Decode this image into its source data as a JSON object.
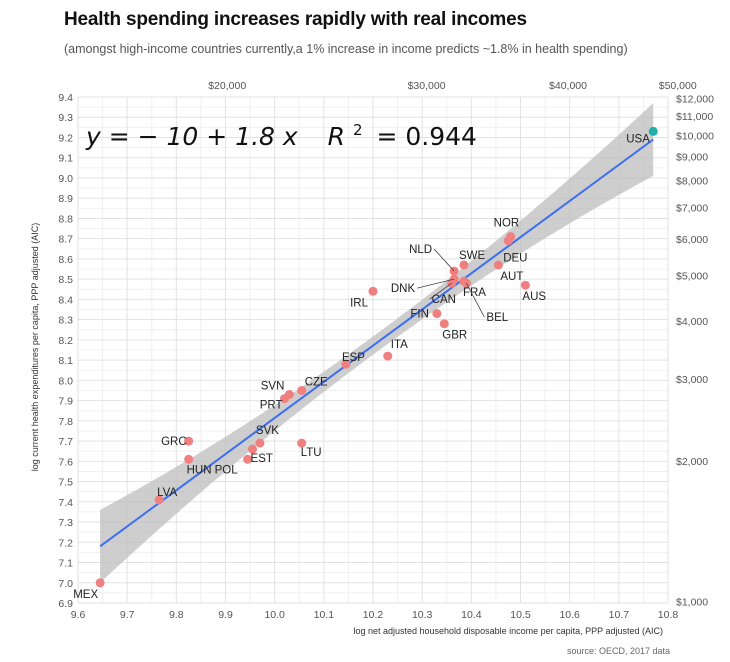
{
  "chart_data": {
    "type": "scatter",
    "title": "Health spending increases rapidly with real incomes",
    "subtitle": "(amongst high-income countries currently,a 1% increase in income predicts ~1.8% in health spending)",
    "xlabel": "log net adjusted household disposable income per capita, PPP adjusted (AIC)",
    "ylabel": "log current health expenditures per capita, PPP adjusted (AIC)",
    "source": "source: OECD, 2017 data",
    "equation": {
      "lhs": "y = − 10 + 1.8 x",
      "r2_prefix": "R",
      "r2_power": "2",
      "r2_rhs": "= 0.944"
    },
    "xlim": [
      9.6,
      10.8
    ],
    "ylim": [
      6.9,
      9.4
    ],
    "x_ticks": [
      "9.6",
      "9.7",
      "9.8",
      "9.9",
      "10.0",
      "10.1",
      "10.2",
      "10.3",
      "10.4",
      "10.5",
      "10.6",
      "10.7",
      "10.8"
    ],
    "y_ticks": [
      "6.9",
      "7.0",
      "7.1",
      "7.2",
      "7.3",
      "7.4",
      "7.5",
      "7.6",
      "7.7",
      "7.8",
      "7.9",
      "8.0",
      "8.1",
      "8.2",
      "8.3",
      "8.4",
      "8.5",
      "8.6",
      "8.7",
      "8.8",
      "8.9",
      "9.0",
      "9.1",
      "9.2",
      "9.3",
      "9.4"
    ],
    "top_axis": [
      {
        "label": "$20,000",
        "value": 20000
      },
      {
        "label": "$30,000",
        "value": 30000
      },
      {
        "label": "$40,000",
        "value": 40000
      },
      {
        "label": "$50,000",
        "value": 50000
      }
    ],
    "right_axis": [
      {
        "label": "$1,000",
        "value": 1000
      },
      {
        "label": "$2,000",
        "value": 2000
      },
      {
        "label": "$3,000",
        "value": 3000
      },
      {
        "label": "$4,000",
        "value": 4000
      },
      {
        "label": "$5,000",
        "value": 5000
      },
      {
        "label": "$6,000",
        "value": 6000
      },
      {
        "label": "$7,000",
        "value": 7000
      },
      {
        "label": "$8,000",
        "value": 8000
      },
      {
        "label": "$9,000",
        "value": 9000
      },
      {
        "label": "$10,000",
        "value": 10000
      },
      {
        "label": "$11,000",
        "value": 11000
      },
      {
        "label": "$12,000",
        "value": 12000
      }
    ],
    "fit_line": {
      "x": [
        9.645,
        10.77
      ],
      "y": [
        7.18,
        9.19
      ],
      "color": "#3b6ef0"
    },
    "band_color": "#bdbdbd",
    "grid": true,
    "points": [
      {
        "label": "MEX",
        "x": 9.645,
        "y": 7.0,
        "color": "#f08080"
      },
      {
        "label": "LVA",
        "x": 9.765,
        "y": 7.41,
        "color": "#f08080"
      },
      {
        "label": "GRC",
        "x": 9.825,
        "y": 7.7,
        "color": "#f08080"
      },
      {
        "label": "HUN",
        "x": 9.825,
        "y": 7.61,
        "color": "#f08080"
      },
      {
        "label": "POL",
        "x": 9.945,
        "y": 7.61,
        "color": "#f08080"
      },
      {
        "label": "EST",
        "x": 9.955,
        "y": 7.66,
        "color": "#f08080"
      },
      {
        "label": "SVK",
        "x": 9.97,
        "y": 7.69,
        "color": "#f08080"
      },
      {
        "label": "LTU",
        "x": 10.055,
        "y": 7.69,
        "color": "#f08080"
      },
      {
        "label": "PRT",
        "x": 10.02,
        "y": 7.91,
        "color": "#f08080"
      },
      {
        "label": "SVN",
        "x": 10.03,
        "y": 7.93,
        "color": "#f08080"
      },
      {
        "label": "CZE",
        "x": 10.055,
        "y": 7.95,
        "color": "#f08080"
      },
      {
        "label": "ESP",
        "x": 10.145,
        "y": 8.08,
        "color": "#f08080"
      },
      {
        "label": "ITA",
        "x": 10.23,
        "y": 8.12,
        "color": "#f08080"
      },
      {
        "label": "IRL",
        "x": 10.2,
        "y": 8.44,
        "color": "#f08080"
      },
      {
        "label": "FIN",
        "x": 10.33,
        "y": 8.33,
        "color": "#f08080"
      },
      {
        "label": "GBR",
        "x": 10.345,
        "y": 8.28,
        "color": "#f08080"
      },
      {
        "label": "CAN",
        "x": 10.36,
        "y": 8.48,
        "color": "#f08080"
      },
      {
        "label": "DNK",
        "x": 10.365,
        "y": 8.5,
        "color": "#f08080"
      },
      {
        "label": "NLD",
        "x": 10.365,
        "y": 8.54,
        "color": "#f08080"
      },
      {
        "label": "SWE",
        "x": 10.385,
        "y": 8.57,
        "color": "#f08080"
      },
      {
        "label": "FRA",
        "x": 10.385,
        "y": 8.49,
        "color": "#f08080"
      },
      {
        "label": "BEL",
        "x": 10.39,
        "y": 8.48,
        "color": "#f08080"
      },
      {
        "label": "AUT",
        "x": 10.455,
        "y": 8.57,
        "color": "#f08080"
      },
      {
        "label": "DEU",
        "x": 10.475,
        "y": 8.69,
        "color": "#f08080"
      },
      {
        "label": "NOR",
        "x": 10.48,
        "y": 8.71,
        "color": "#f08080"
      },
      {
        "label": "AUS",
        "x": 10.51,
        "y": 8.47,
        "color": "#f08080"
      },
      {
        "label": "USA",
        "x": 10.77,
        "y": 9.23,
        "color": "#20b2aa"
      }
    ]
  }
}
